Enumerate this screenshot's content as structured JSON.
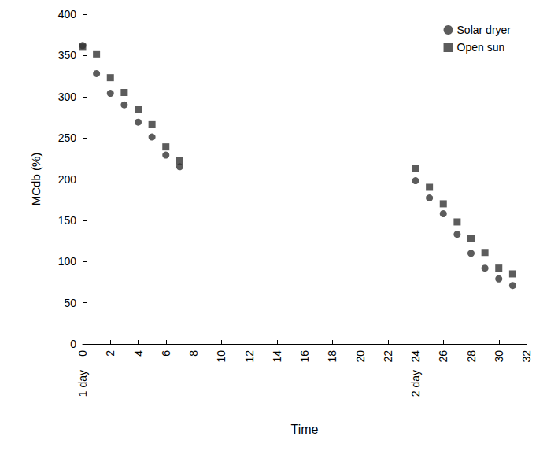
{
  "chart_data": {
    "type": "scatter",
    "x_label": "Time",
    "y_label": "MCdb (%)",
    "xlim": [
      0,
      32
    ],
    "xticks": [
      0,
      2,
      4,
      6,
      8,
      10,
      12,
      14,
      16,
      18,
      20,
      22,
      24,
      26,
      28,
      30,
      32
    ],
    "ylim": [
      0,
      400
    ],
    "yticks": [
      0,
      50,
      100,
      150,
      200,
      250,
      300,
      350,
      400
    ],
    "grid": false,
    "legend": "upper right",
    "annotations": [
      {
        "text": "1 day",
        "x": 0
      },
      {
        "text": "2 day",
        "x": 24
      }
    ],
    "series": [
      {
        "name": "Solar dryer",
        "color": "#333333",
        "marker": "circle",
        "x": [
          0,
          1,
          2,
          3,
          4,
          5,
          6,
          7,
          24,
          25,
          26,
          27,
          28,
          29,
          30,
          31
        ],
        "values": [
          362,
          328,
          304,
          290,
          269,
          251,
          229,
          215,
          198,
          177,
          158,
          133,
          110,
          92,
          79,
          71
        ]
      },
      {
        "name": "Open sun",
        "color": "#333333",
        "marker": "square",
        "x": [
          0,
          1,
          2,
          3,
          4,
          5,
          6,
          7,
          24,
          25,
          26,
          27,
          28,
          29,
          30,
          31
        ],
        "values": [
          360,
          351,
          323,
          305,
          284,
          266,
          239,
          222,
          213,
          190,
          170,
          148,
          128,
          111,
          92,
          85
        ]
      }
    ]
  }
}
